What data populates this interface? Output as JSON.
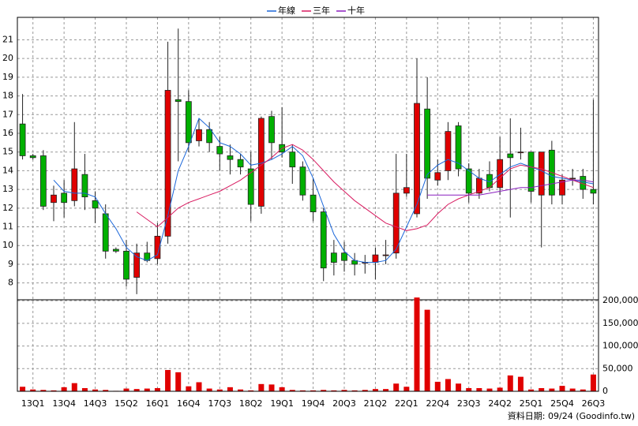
{
  "chart_data": [
    {
      "type": "candlestick",
      "legend": "top",
      "grid": true,
      "up_color": "#e00000",
      "down_color": "#00b000",
      "ylim": [
        7.1,
        22.2
      ],
      "yticks": [
        8,
        9,
        10,
        11,
        12,
        13,
        14,
        15,
        16,
        17,
        18,
        19,
        20,
        21
      ],
      "open": [
        16.5,
        14.8,
        14.8,
        12.3,
        12.8,
        12.4,
        13.8,
        12.4,
        11.7,
        9.8,
        9.7,
        8.3,
        9.6,
        9.3,
        10.5,
        17.8,
        17.7,
        15.6,
        16.2,
        15.3,
        14.8,
        14.6,
        14.1,
        12.1,
        16.9,
        15.4,
        15.0,
        14.2,
        12.7,
        11.8,
        9.6,
        9.6,
        9.2,
        9.1,
        9.1,
        9.5,
        9.6,
        12.8,
        11.7,
        17.3,
        13.5,
        14.0,
        16.4,
        14.1,
        12.8,
        13.8,
        13.1,
        14.9,
        15.0,
        15.0,
        12.7,
        15.1,
        12.7,
        13.6,
        13.7,
        13.0
      ],
      "high": [
        18.1,
        14.9,
        15.1,
        13.2,
        13.5,
        16.6,
        14.9,
        12.9,
        12.2,
        9.9,
        10.3,
        10.1,
        10.2,
        11.2,
        20.9,
        21.6,
        18.3,
        16.8,
        16.6,
        15.8,
        15.4,
        14.9,
        15.0,
        16.9,
        17.2,
        17.4,
        15.4,
        14.5,
        13.6,
        12.0,
        10.3,
        10.2,
        9.6,
        9.5,
        9.9,
        10.3,
        14.9,
        14.9,
        20.0,
        19.0,
        14.6,
        16.6,
        16.6,
        14.4,
        14.1,
        14.5,
        15.8,
        16.8,
        16.3,
        15.0,
        15.0,
        15.6,
        13.8,
        14.1,
        14.1,
        17.8
      ],
      "low": [
        14.6,
        14.6,
        11.9,
        11.3,
        11.5,
        12.1,
        11.9,
        11.2,
        9.3,
        9.6,
        7.8,
        7.4,
        9.1,
        9.0,
        10.1,
        14.5,
        15.0,
        15.3,
        15.0,
        14.0,
        13.8,
        13.8,
        11.3,
        11.7,
        14.6,
        14.7,
        13.3,
        12.4,
        11.3,
        8.1,
        8.4,
        8.6,
        8.4,
        8.5,
        8.2,
        9.0,
        9.3,
        12.6,
        11.5,
        12.5,
        13.2,
        13.5,
        13.7,
        12.3,
        12.5,
        12.9,
        12.7,
        11.5,
        14.6,
        12.3,
        9.9,
        12.2,
        12.2,
        13.2,
        12.5,
        12.2
      ],
      "close": [
        14.8,
        14.7,
        12.1,
        12.7,
        12.3,
        14.1,
        12.6,
        12.0,
        9.7,
        9.7,
        8.2,
        9.6,
        9.2,
        10.5,
        18.3,
        17.7,
        15.5,
        16.2,
        15.5,
        14.9,
        14.6,
        14.2,
        12.2,
        16.8,
        15.5,
        15.0,
        14.2,
        12.7,
        11.8,
        8.8,
        9.1,
        9.2,
        9.0,
        9.1,
        9.5,
        9.5,
        12.8,
        13.1,
        17.6,
        13.6,
        13.9,
        16.1,
        14.1,
        12.8,
        13.6,
        13.1,
        14.6,
        14.7,
        15.0,
        12.9,
        15.0,
        12.7,
        13.5,
        13.6,
        13.0,
        12.8
      ],
      "series": [
        {
          "name": "年線",
          "color": "#1a66d9",
          "values": [
            null,
            null,
            null,
            13.5,
            12.9,
            12.8,
            12.8,
            12.6,
            11.7,
            10.9,
            9.9,
            9.4,
            9.2,
            9.5,
            11.6,
            14.0,
            15.3,
            16.8,
            16.3,
            15.5,
            15.3,
            14.9,
            14.3,
            14.4,
            14.6,
            14.9,
            15.3,
            14.8,
            13.6,
            12.1,
            10.6,
            9.7,
            9.2,
            9.1,
            9.1,
            9.2,
            9.8,
            11.0,
            12.2,
            13.8,
            14.3,
            14.6,
            14.4,
            14.0,
            13.6,
            13.4,
            13.8,
            14.2,
            14.4,
            14.2,
            14.0,
            13.7,
            13.6,
            13.5,
            13.4,
            13.3
          ]
        },
        {
          "name": "三年",
          "color": "#d81b60",
          "values": [
            null,
            null,
            null,
            null,
            null,
            null,
            null,
            null,
            null,
            null,
            null,
            11.8,
            11.4,
            11.0,
            11.5,
            12.0,
            12.3,
            12.5,
            12.7,
            12.9,
            13.2,
            13.5,
            13.9,
            14.3,
            14.7,
            15.2,
            15.4,
            15.1,
            14.6,
            14.0,
            13.4,
            12.9,
            12.4,
            12.0,
            11.6,
            11.2,
            11.0,
            10.8,
            10.9,
            11.1,
            11.7,
            12.2,
            12.5,
            12.7,
            12.9,
            13.1,
            13.6,
            14.1,
            14.3,
            14.2,
            14.1,
            13.9,
            13.7,
            13.5,
            13.3,
            13.1
          ]
        },
        {
          "name": "十年",
          "color": "#8a1fbf",
          "values": [
            null,
            null,
            null,
            null,
            null,
            null,
            null,
            null,
            null,
            null,
            null,
            null,
            null,
            null,
            null,
            null,
            null,
            null,
            null,
            null,
            null,
            null,
            null,
            null,
            null,
            null,
            null,
            null,
            null,
            null,
            null,
            null,
            null,
            null,
            null,
            null,
            null,
            null,
            null,
            12.7,
            12.7,
            12.7,
            12.7,
            12.7,
            12.7,
            12.8,
            12.9,
            13.0,
            13.1,
            13.1,
            13.2,
            13.3,
            13.4,
            13.5,
            13.5,
            13.4
          ]
        }
      ]
    },
    {
      "type": "bar",
      "color": "#e00000",
      "grid": true,
      "categories": [
        null,
        "13Q1",
        null,
        null,
        "13Q4",
        null,
        null,
        "14Q3",
        null,
        null,
        "15Q2",
        null,
        null,
        "16Q1",
        null,
        null,
        "16Q4",
        null,
        null,
        "17Q3",
        null,
        null,
        "18Q2",
        null,
        null,
        "19Q1",
        null,
        null,
        "19Q4",
        null,
        null,
        "20Q3",
        null,
        null,
        "21Q2",
        null,
        null,
        "22Q1",
        null,
        null,
        "22Q4",
        null,
        null,
        "23Q3",
        null,
        null,
        "24Q2",
        null,
        null,
        "25Q1",
        null,
        null,
        "25Q4",
        null,
        null,
        "26Q3"
      ],
      "values": [
        10000,
        4000,
        3000,
        2000,
        9000,
        18000,
        7000,
        4000,
        3000,
        1000,
        6000,
        5000,
        6000,
        7000,
        47000,
        42000,
        11000,
        20000,
        6000,
        4000,
        9000,
        4000,
        2000,
        16000,
        15000,
        9000,
        3000,
        2000,
        2000,
        3000,
        2000,
        3000,
        2000,
        3000,
        5000,
        5000,
        17000,
        10000,
        207000,
        180000,
        21000,
        27000,
        17000,
        7000,
        7000,
        6000,
        8000,
        35000,
        32000,
        4000,
        7000,
        6000,
        12000,
        6000,
        4000,
        37000
      ],
      "ylim": [
        0,
        202000
      ],
      "yticks": [
        0,
        {
          "value": 50000,
          "label": "50,000"
        },
        {
          "value": 100000,
          "label": "100,000"
        },
        {
          "value": 150000,
          "label": "150,000"
        },
        {
          "value": 200000,
          "label": "200,000"
        }
      ]
    }
  ],
  "source": "資料日期: 09/24 (Goodinfo.tw)"
}
